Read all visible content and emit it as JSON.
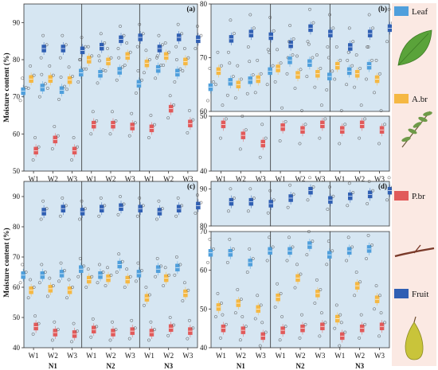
{
  "chart_data": {
    "type": "box",
    "y_label": "Moisture content (%)",
    "groups": [
      "N1",
      "N2",
      "N3"
    ],
    "subgroups": [
      "W1",
      "W2",
      "W3"
    ],
    "legend": [
      {
        "key": "leaf",
        "label": "Leaf",
        "color": "#4f9fdc",
        "icon": "leaf-icon"
      },
      {
        "key": "abr",
        "label": "A.br",
        "color": "#f5b843",
        "icon": "branch-sprig-icon"
      },
      {
        "key": "pbr",
        "label": "P.br",
        "color": "#e15a5a",
        "icon": "twig-icon"
      },
      {
        "key": "fruit",
        "label": "Fruit",
        "color": "#2f5fb3",
        "icon": "pear-icon"
      }
    ],
    "panels": [
      {
        "letter": "(a)",
        "axis": "single",
        "ylim": [
          50,
          95
        ],
        "yticks": [
          50,
          60,
          70,
          80,
          90
        ],
        "series": {
          "leaf": [
            71.5,
            72.5,
            71.8,
            76.5,
            76.2,
            77.0,
            73.5,
            77.5,
            76.5
          ],
          "abr": [
            74.8,
            74.8,
            74.5,
            80.0,
            79.5,
            81.0,
            79.0,
            81.0,
            79.5
          ],
          "pbr": [
            55.5,
            58.5,
            55.5,
            62.5,
            62.5,
            62.0,
            61.5,
            66.8,
            62.8
          ],
          "fruit": [
            83.0,
            83.0,
            82.5,
            83.5,
            85.5,
            86.0,
            83.0,
            86.0,
            85.5
          ]
        }
      },
      {
        "letter": "(b)",
        "axis": "broken",
        "upper_ylim": [
          60,
          80
        ],
        "upper_yticks": [
          60,
          70,
          80
        ],
        "lower_ylim": [
          40,
          50
        ],
        "lower_yticks": [
          40,
          50
        ],
        "series": {
          "leaf": [
            64.5,
            65.5,
            65.8,
            67.5,
            69.5,
            69.0,
            66.5,
            67.5,
            68.5
          ],
          "abr": [
            67.5,
            65.0,
            66.0,
            68.0,
            66.8,
            67.0,
            68.5,
            67.0,
            66.0
          ],
          "pbr": [
            48.5,
            46.5,
            45.0,
            48.0,
            47.5,
            48.5,
            47.5,
            48.5,
            47.5
          ],
          "fruit": [
            73.5,
            74.5,
            74.0,
            72.5,
            75.5,
            74.5,
            72.0,
            74.5,
            75.5
          ]
        }
      },
      {
        "letter": "(c)",
        "axis": "single",
        "ylim": [
          40,
          95
        ],
        "yticks": [
          40,
          50,
          60,
          70,
          80,
          90
        ],
        "series": {
          "leaf": [
            64.0,
            64.0,
            64.5,
            66.0,
            64.0,
            67.5,
            64.5,
            66.0,
            66.5
          ],
          "abr": [
            59.0,
            59.5,
            59.0,
            62.5,
            63.0,
            62.5,
            56.5,
            63.0,
            58.0
          ],
          "pbr": [
            47.0,
            45.0,
            44.5,
            46.0,
            45.0,
            45.5,
            45.0,
            46.5,
            45.5
          ],
          "fruit": [
            85.0,
            86.0,
            85.0,
            86.0,
            86.5,
            86.0,
            85.0,
            86.0,
            87.0
          ]
        }
      },
      {
        "letter": "(d)",
        "axis": "broken",
        "upper_ylim": [
          80,
          92
        ],
        "upper_yticks": [
          80,
          90
        ],
        "lower_ylim": [
          40,
          70
        ],
        "lower_yticks": [
          40,
          50,
          60,
          70
        ],
        "series": {
          "leaf": [
            64.5,
            64.5,
            62.0,
            65.0,
            65.0,
            66.5,
            64.0,
            65.0,
            65.5
          ],
          "abr": [
            50.5,
            51.5,
            50.0,
            53.0,
            58.0,
            54.0,
            47.5,
            56.0,
            52.5
          ],
          "pbr": [
            45.0,
            44.5,
            43.0,
            44.5,
            45.0,
            45.5,
            43.0,
            45.0,
            45.5
          ],
          "fruit": [
            86.5,
            86.5,
            86.0,
            87.5,
            89.5,
            87.0,
            88.0,
            88.5,
            89.5
          ]
        }
      }
    ]
  }
}
